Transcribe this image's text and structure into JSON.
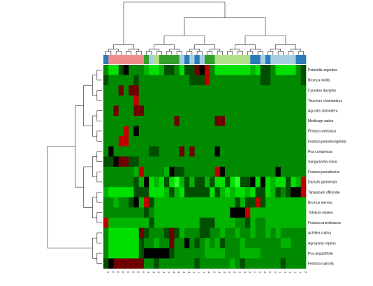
{
  "chart_data": {
    "type": "heatmap",
    "title": "",
    "xlabel": "",
    "ylabel": "",
    "rows": [
      "Potentilla argentea",
      "Bromus mollis",
      "Cynodon dactylon",
      "Teucrium chamaedrys",
      "Agrostis stolonifera",
      "Medicago sativa",
      "Festuca valesiaca",
      "Festuca pseudovaginata",
      "Poa compressa",
      "Sanguisorba minor",
      "Festuca pseudovina",
      "Dactylis glomerata",
      "Taraxacum officinale",
      "Bromus inermis",
      "Trifolium repens",
      "Festuca arundinacea",
      "Achillea collina",
      "Agropyron repens",
      "Poa angustifolia",
      "Festuca rupicola"
    ],
    "columns": [
      "2",
      "6",
      "6",
      "5",
      "5",
      "6",
      "6",
      "6",
      "4",
      "4",
      "3",
      "4",
      "3",
      "4",
      "4",
      "4",
      "4",
      "1",
      "1",
      "1",
      "4",
      "2",
      "4",
      "4",
      "3",
      "3",
      "3",
      "3",
      "3",
      "2",
      "3",
      "3",
      "2",
      "2",
      "1",
      "1",
      "1",
      "1",
      "1",
      "2"
    ],
    "column_groups": [
      "blue",
      "pink",
      "pink",
      "pink",
      "pink",
      "pink",
      "pink",
      "pink",
      "green",
      "lightblue",
      "lightgreen",
      "green",
      "green",
      "green",
      "green",
      "lightblue",
      "blue",
      "lightblue",
      "blue",
      "lightblue",
      "green",
      "green",
      "lightgreen",
      "lightgreen",
      "lightgreen",
      "lightgreen",
      "lightgreen",
      "lightgreen",
      "lightgreen",
      "blue",
      "blue",
      "lightblue",
      "blue",
      "lightblue",
      "lightblue",
      "lightblue",
      "lightblue",
      "lightblue",
      "blue",
      "blue"
    ],
    "group_colors": {
      "blue": "#2b7bba",
      "pink": "#f08c8c",
      "green": "#33a02c",
      "lightblue": "#a6cee3",
      "lightgreen": "#b2df8a"
    },
    "color_scale": {
      "-3": "#6e0000",
      "-2": "#c00000",
      "-1": "#000000",
      "0": "#004f00",
      "1": "#008a00",
      "2": "#00b400",
      "3": "#00e000",
      "4": "#2aff2a"
    },
    "values": [
      [
        1,
        3,
        3,
        0,
        -1,
        1,
        1,
        1,
        2,
        3,
        3,
        2,
        0,
        0,
        1,
        3,
        0,
        0,
        -3,
        -1,
        -2,
        1,
        3,
        3,
        3,
        3,
        3,
        3,
        3,
        2,
        3,
        0,
        0,
        1,
        3,
        3,
        3,
        3,
        1,
        0
      ],
      [
        0,
        1,
        1,
        1,
        1,
        1,
        0,
        1,
        1,
        1,
        1,
        1,
        1,
        1,
        1,
        1,
        1,
        0,
        0,
        0,
        -2,
        1,
        1,
        1,
        1,
        1,
        1,
        1,
        1,
        1,
        1,
        0,
        0,
        1,
        1,
        1,
        1,
        1,
        1,
        0
      ],
      [
        1,
        1,
        1,
        -3,
        1,
        -3,
        -3,
        1,
        1,
        1,
        1,
        1,
        1,
        1,
        1,
        1,
        1,
        1,
        1,
        1,
        1,
        1,
        1,
        1,
        1,
        1,
        1,
        1,
        1,
        1,
        1,
        1,
        1,
        1,
        1,
        1,
        1,
        1,
        1,
        1
      ],
      [
        1,
        1,
        1,
        1,
        1,
        1,
        -2,
        1,
        1,
        1,
        1,
        1,
        1,
        1,
        1,
        1,
        1,
        1,
        1,
        1,
        1,
        1,
        1,
        1,
        1,
        1,
        1,
        1,
        1,
        1,
        1,
        1,
        1,
        1,
        1,
        1,
        1,
        1,
        1,
        1
      ],
      [
        1,
        1,
        -3,
        1,
        1,
        1,
        -3,
        -3,
        1,
        1,
        1,
        1,
        1,
        1,
        1,
        1,
        1,
        1,
        1,
        1,
        1,
        1,
        1,
        1,
        1,
        1,
        1,
        1,
        1,
        1,
        1,
        1,
        1,
        1,
        1,
        1,
        1,
        1,
        1,
        1
      ],
      [
        1,
        1,
        1,
        1,
        1,
        1,
        1,
        1,
        1,
        1,
        1,
        1,
        1,
        1,
        -3,
        1,
        1,
        1,
        1,
        1,
        1,
        1,
        -3,
        -3,
        1,
        1,
        1,
        1,
        1,
        1,
        1,
        1,
        1,
        1,
        1,
        1,
        1,
        1,
        1,
        1
      ],
      [
        1,
        1,
        1,
        1,
        -2,
        1,
        -1,
        1,
        1,
        1,
        1,
        1,
        1,
        1,
        1,
        1,
        1,
        1,
        1,
        1,
        1,
        1,
        1,
        1,
        1,
        1,
        1,
        1,
        1,
        1,
        1,
        1,
        1,
        1,
        1,
        1,
        1,
        1,
        1,
        1
      ],
      [
        1,
        1,
        1,
        -2,
        -2,
        1,
        1,
        1,
        1,
        1,
        1,
        1,
        1,
        1,
        1,
        1,
        1,
        1,
        1,
        1,
        1,
        1,
        1,
        1,
        1,
        1,
        1,
        1,
        1,
        1,
        1,
        1,
        1,
        1,
        1,
        1,
        1,
        1,
        1,
        1
      ],
      [
        1,
        -1,
        1,
        1,
        1,
        1,
        1,
        1,
        1,
        0,
        0,
        1,
        1,
        1,
        1,
        -3,
        1,
        -3,
        1,
        1,
        1,
        1,
        -1,
        1,
        1,
        1,
        1,
        1,
        1,
        1,
        1,
        1,
        1,
        1,
        1,
        1,
        1,
        1,
        1,
        1
      ],
      [
        0,
        0,
        -1,
        -3,
        -3,
        0,
        0,
        1,
        1,
        1,
        1,
        1,
        1,
        1,
        1,
        1,
        1,
        1,
        1,
        1,
        1,
        1,
        1,
        1,
        1,
        1,
        1,
        1,
        1,
        1,
        1,
        1,
        1,
        1,
        1,
        1,
        1,
        1,
        1,
        1
      ],
      [
        1,
        1,
        1,
        1,
        1,
        1,
        2,
        -2,
        1,
        1,
        1,
        1,
        2,
        -1,
        0,
        0,
        1,
        1,
        1,
        1,
        1,
        1,
        -2,
        -1,
        1,
        1,
        1,
        1,
        1,
        1,
        1,
        1,
        1,
        1,
        -1,
        1,
        1,
        1,
        1,
        1
      ],
      [
        1,
        1,
        1,
        1,
        1,
        1,
        0,
        2,
        -1,
        3,
        2,
        3,
        0,
        3,
        4,
        2,
        0,
        2,
        0,
        0,
        2,
        0,
        3,
        3,
        0,
        3,
        4,
        0,
        0,
        -1,
        3,
        -1,
        3,
        2,
        3,
        3,
        0,
        3,
        2,
        -2
      ],
      [
        2,
        3,
        3,
        3,
        3,
        3,
        0,
        0,
        0,
        3,
        3,
        3,
        2,
        0,
        2,
        3,
        0,
        0,
        0,
        0,
        0,
        3,
        0,
        2,
        3,
        2,
        3,
        3,
        2,
        3,
        0,
        0,
        3,
        2,
        0,
        1,
        0,
        -1,
        -1,
        -2
      ],
      [
        1,
        1,
        2,
        1,
        1,
        0,
        -1,
        2,
        -2,
        0,
        2,
        2,
        2,
        2,
        2,
        2,
        2,
        2,
        2,
        2,
        2,
        2,
        2,
        2,
        2,
        2,
        0,
        2,
        0,
        0,
        -2,
        0,
        2,
        2,
        2,
        2,
        2,
        2,
        2,
        2
      ],
      [
        1,
        1,
        1,
        1,
        1,
        1,
        1,
        1,
        0,
        1,
        2,
        2,
        2,
        2,
        2,
        2,
        2,
        2,
        2,
        2,
        2,
        2,
        2,
        2,
        2,
        -1,
        -1,
        -1,
        -2,
        2,
        2,
        2,
        2,
        2,
        2,
        2,
        2,
        2,
        2,
        2
      ],
      [
        -2,
        2,
        2,
        2,
        2,
        2,
        2,
        2,
        2,
        0,
        2,
        2,
        2,
        2,
        2,
        2,
        2,
        2,
        2,
        0,
        0,
        0,
        2,
        2,
        2,
        2,
        1,
        1,
        0,
        2,
        1,
        1,
        2,
        2,
        2,
        2,
        2,
        2,
        2,
        2
      ],
      [
        1,
        3,
        3,
        3,
        3,
        3,
        3,
        -3,
        0,
        1,
        1,
        1,
        0,
        -3,
        0,
        2,
        1,
        1,
        1,
        0,
        0,
        1,
        1,
        2,
        1,
        1,
        2,
        1,
        1,
        2,
        1,
        1,
        2,
        1,
        2,
        1,
        1,
        1,
        1,
        1
      ],
      [
        1,
        3,
        3,
        3,
        3,
        3,
        3,
        0,
        1,
        1,
        2,
        1,
        1,
        -3,
        1,
        1,
        -1,
        1,
        0,
        1,
        2,
        1,
        2,
        0,
        1,
        1,
        1,
        2,
        1,
        1,
        1,
        1,
        1,
        1,
        1,
        2,
        2,
        1,
        1,
        1
      ],
      [
        1,
        3,
        3,
        3,
        3,
        3,
        3,
        0,
        -1,
        -1,
        -1,
        -1,
        -1,
        0,
        1,
        1,
        1,
        1,
        1,
        1,
        2,
        2,
        2,
        2,
        1,
        1,
        1,
        2,
        2,
        2,
        2,
        1,
        1,
        1,
        1,
        1,
        1,
        1,
        1,
        1
      ],
      [
        0,
        -1,
        -3,
        -3,
        -3,
        -3,
        -3,
        -3,
        1,
        1,
        0,
        1,
        1,
        1,
        1,
        1,
        1,
        1,
        0,
        1,
        1,
        1,
        1,
        1,
        1,
        2,
        1,
        0,
        1,
        1,
        1,
        1,
        1,
        1,
        1,
        0,
        1,
        1,
        1,
        1
      ]
    ]
  }
}
